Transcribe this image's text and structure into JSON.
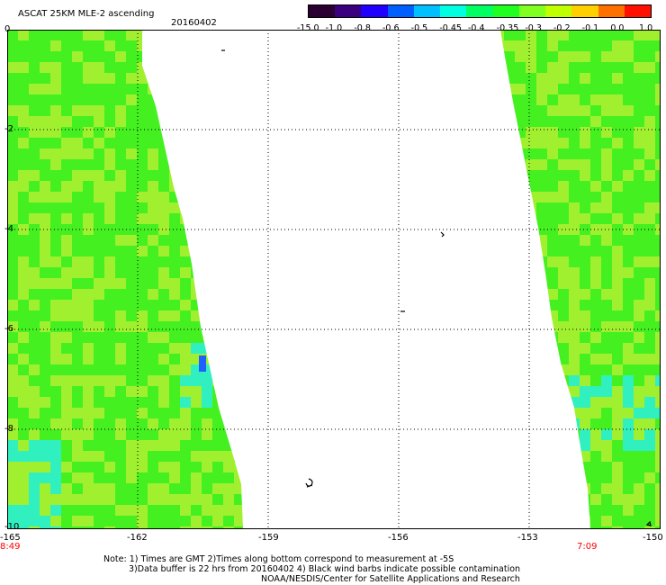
{
  "header": {
    "product_title": "ASCAT 25KM MLE-2 ascending",
    "date": "20160402"
  },
  "colorbar": {
    "labels": [
      "-15.0",
      "-1.0",
      "-0.8",
      "-0.6",
      "-0.5",
      "-0.45",
      "-0.4",
      "-0.35",
      "-0.3",
      "-0.2",
      "-0.1",
      "0.0",
      "1.0"
    ],
    "colors": [
      "#2a0033",
      "#3a0080",
      "#2000ff",
      "#0060ff",
      "#00c0ff",
      "#00ffe0",
      "#00ff60",
      "#20ff20",
      "#80ff20",
      "#c0ff00",
      "#ffd000",
      "#ff7000",
      "#ff1000"
    ]
  },
  "axes": {
    "lat_labels": [
      "0",
      "-2",
      "-4",
      "-6",
      "-8",
      "-10"
    ],
    "lon_labels": [
      "-165",
      "-162",
      "-159",
      "-156",
      "-153",
      "-150"
    ]
  },
  "times": {
    "left": "8:49",
    "right": "7:09"
  },
  "notes": [
    "Note: 1) Times are GMT 2)Times along bottom correspond to measurement at -5S",
    "3)Data buffer is 22 hrs from 20160402 4) Black wind barbs indicate possible contamination",
    "NOAA/NESDIS/Center for Satellite Applications and Research"
  ],
  "swath_colors": {
    "green": "#44f020",
    "yellow_green": "#a0f030",
    "cyan": "#30f0c0",
    "blue": "#2060ff"
  }
}
